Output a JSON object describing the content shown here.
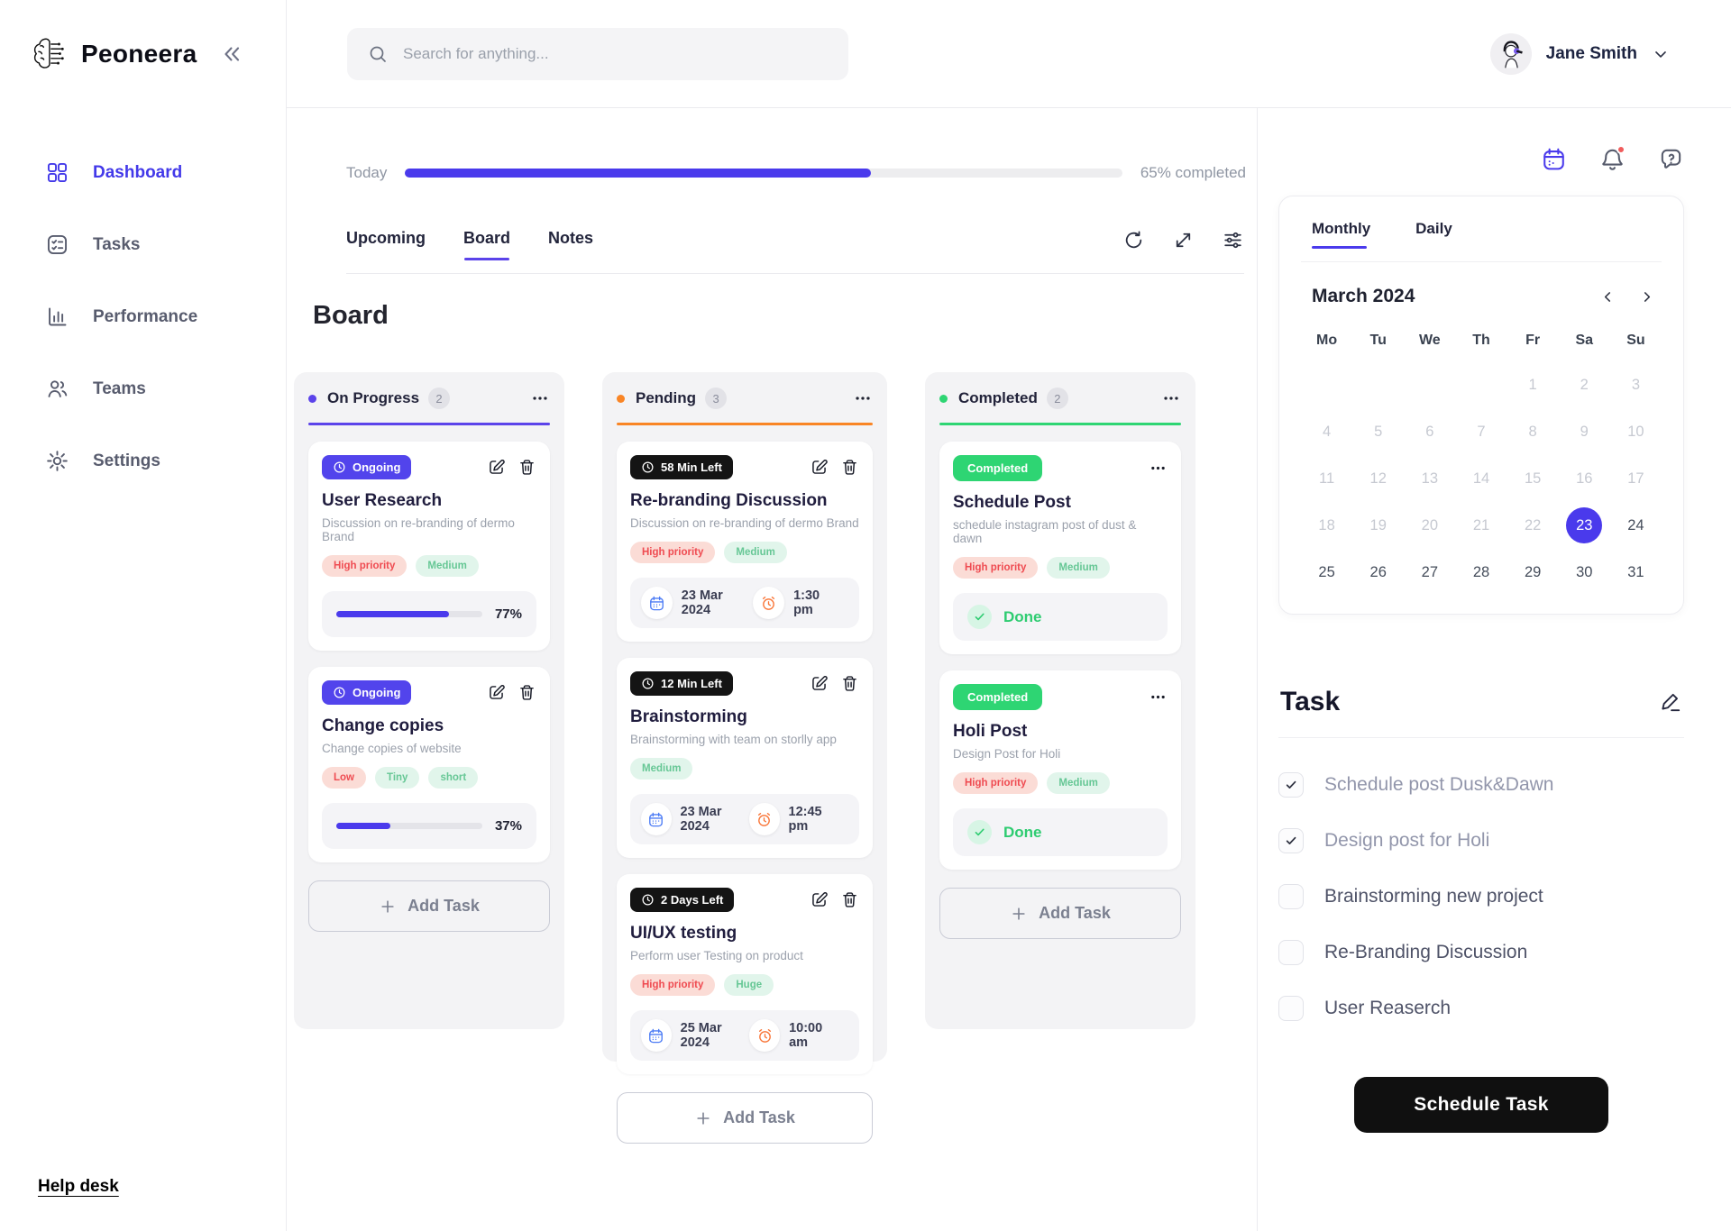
{
  "app": {
    "name": "Peoneera"
  },
  "header": {
    "search_placeholder": "Search for anything...",
    "user_name": "Jane Smith"
  },
  "sidebar": {
    "items": [
      {
        "id": "dashboard",
        "label": "Dashboard",
        "icon": "grid",
        "active": true
      },
      {
        "id": "tasks",
        "label": "Tasks",
        "icon": "tasks",
        "active": false
      },
      {
        "id": "performance",
        "label": "Performance",
        "icon": "perf",
        "active": false
      },
      {
        "id": "teams",
        "label": "Teams",
        "icon": "teams",
        "active": false
      },
      {
        "id": "settings",
        "label": "Settings",
        "icon": "gear",
        "active": false
      }
    ],
    "help_label": "Help desk"
  },
  "progress": {
    "label": "Today",
    "percent": 65,
    "completed_text": "65% completed"
  },
  "tabs": {
    "items": [
      "Upcoming",
      "Board",
      "Notes"
    ],
    "active": 1
  },
  "board": {
    "title": "Board",
    "add_label": "Add Task",
    "columns": [
      {
        "name": "On Progress",
        "count": "2",
        "accent": "#5b43ea",
        "cards": [
          {
            "badge": {
              "label": "Ongoing",
              "style": "purple",
              "clock": true
            },
            "actions": "edit-trash",
            "title": "User Research",
            "desc": "Discussion on re-branding of dermo Brand",
            "tags": [
              {
                "label": "High priority",
                "color": "red"
              },
              {
                "label": "Medium",
                "color": "green"
              }
            ],
            "footer": {
              "type": "progress",
              "percent": 77,
              "label": "77%"
            }
          },
          {
            "badge": {
              "label": "Ongoing",
              "style": "purple",
              "clock": true
            },
            "actions": "edit-trash",
            "title": "Change copies",
            "desc": "Change copies of website",
            "tags": [
              {
                "label": "Low",
                "color": "red"
              },
              {
                "label": "Tiny",
                "color": "green"
              },
              {
                "label": "short",
                "color": "green"
              }
            ],
            "footer": {
              "type": "progress",
              "percent": 37,
              "label": "37%"
            }
          }
        ]
      },
      {
        "name": "Pending",
        "count": "3",
        "accent": "#f98525",
        "cards": [
          {
            "badge": {
              "label": "58 Min Left",
              "style": "black",
              "clock": true
            },
            "actions": "edit-trash",
            "title": "Re-branding Discussion",
            "desc": "Discussion on re-branding of dermo Brand",
            "tags": [
              {
                "label": "High priority",
                "color": "red"
              },
              {
                "label": "Medium",
                "color": "green"
              }
            ],
            "footer": {
              "type": "schedule",
              "date": "23 Mar 2024",
              "time": "1:30 pm"
            }
          },
          {
            "badge": {
              "label": "12 Min Left",
              "style": "black",
              "clock": true
            },
            "actions": "edit-trash",
            "title": "Brainstorming",
            "desc": "Brainstorming with team on storlly app",
            "tags": [
              {
                "label": "Medium",
                "color": "green"
              }
            ],
            "footer": {
              "type": "schedule",
              "date": "23 Mar 2024",
              "time": "12:45 pm"
            }
          },
          {
            "badge": {
              "label": "2 Days Left",
              "style": "black",
              "clock": true
            },
            "actions": "edit-trash",
            "title": "UI/UX testing",
            "desc": "Perform user Testing on product",
            "tags": [
              {
                "label": "High priority",
                "color": "red"
              },
              {
                "label": "Huge",
                "color": "green"
              }
            ],
            "footer": {
              "type": "schedule",
              "date": "25 Mar 2024",
              "time": "10:00 am"
            }
          }
        ]
      },
      {
        "name": "Completed",
        "count": "2",
        "accent": "#2ed573",
        "cards": [
          {
            "badge": {
              "label": "Completed",
              "style": "green",
              "clock": false
            },
            "actions": "menu",
            "title": "Schedule Post",
            "desc": "schedule instagram post of dust & dawn",
            "tags": [
              {
                "label": "High priority",
                "color": "red"
              },
              {
                "label": "Medium",
                "color": "green"
              }
            ],
            "footer": {
              "type": "done",
              "label": "Done"
            }
          },
          {
            "badge": {
              "label": "Completed",
              "style": "green",
              "clock": false
            },
            "actions": "menu",
            "title": "Holi Post",
            "desc": "Design Post for Holi",
            "tags": [
              {
                "label": "High priority",
                "color": "red"
              },
              {
                "label": "Medium",
                "color": "green"
              }
            ],
            "footer": {
              "type": "done",
              "label": "Done"
            }
          }
        ]
      }
    ]
  },
  "calendar": {
    "tabs": [
      "Monthly",
      "Daily"
    ],
    "active_tab": 0,
    "month": "March 2024",
    "day_headers": [
      "Mo",
      "Tu",
      "We",
      "Th",
      "Fr",
      "Sa",
      "Su"
    ],
    "weeks": [
      [
        "",
        "",
        "",
        "",
        "1",
        "2",
        "3"
      ],
      [
        "4",
        "5",
        "6",
        "7",
        "8",
        "9",
        "10"
      ],
      [
        "11",
        "12",
        "13",
        "14",
        "15",
        "16",
        "17"
      ],
      [
        "18",
        "19",
        "20",
        "21",
        "22",
        "23",
        "24"
      ],
      [
        "25",
        "26",
        "27",
        "28",
        "29",
        "30",
        "31"
      ]
    ],
    "selected_day": 23,
    "muted_through": 22
  },
  "tasks": {
    "title": "Task",
    "items": [
      {
        "label": "Schedule post Dusk&Dawn",
        "checked": true
      },
      {
        "label": "Design post for Holi",
        "checked": true
      },
      {
        "label": "Brainstorming new project",
        "checked": false
      },
      {
        "label": "Re-Branding Discussion",
        "checked": false
      },
      {
        "label": "User Reaserch",
        "checked": false
      }
    ],
    "button_label": "Schedule Task"
  },
  "icons": {
    "collapse": "double-chevron-left",
    "more": "horizontal-dots",
    "chevron_left": "‹",
    "chevron_right": "›",
    "plus": "+",
    "check": "✓"
  }
}
